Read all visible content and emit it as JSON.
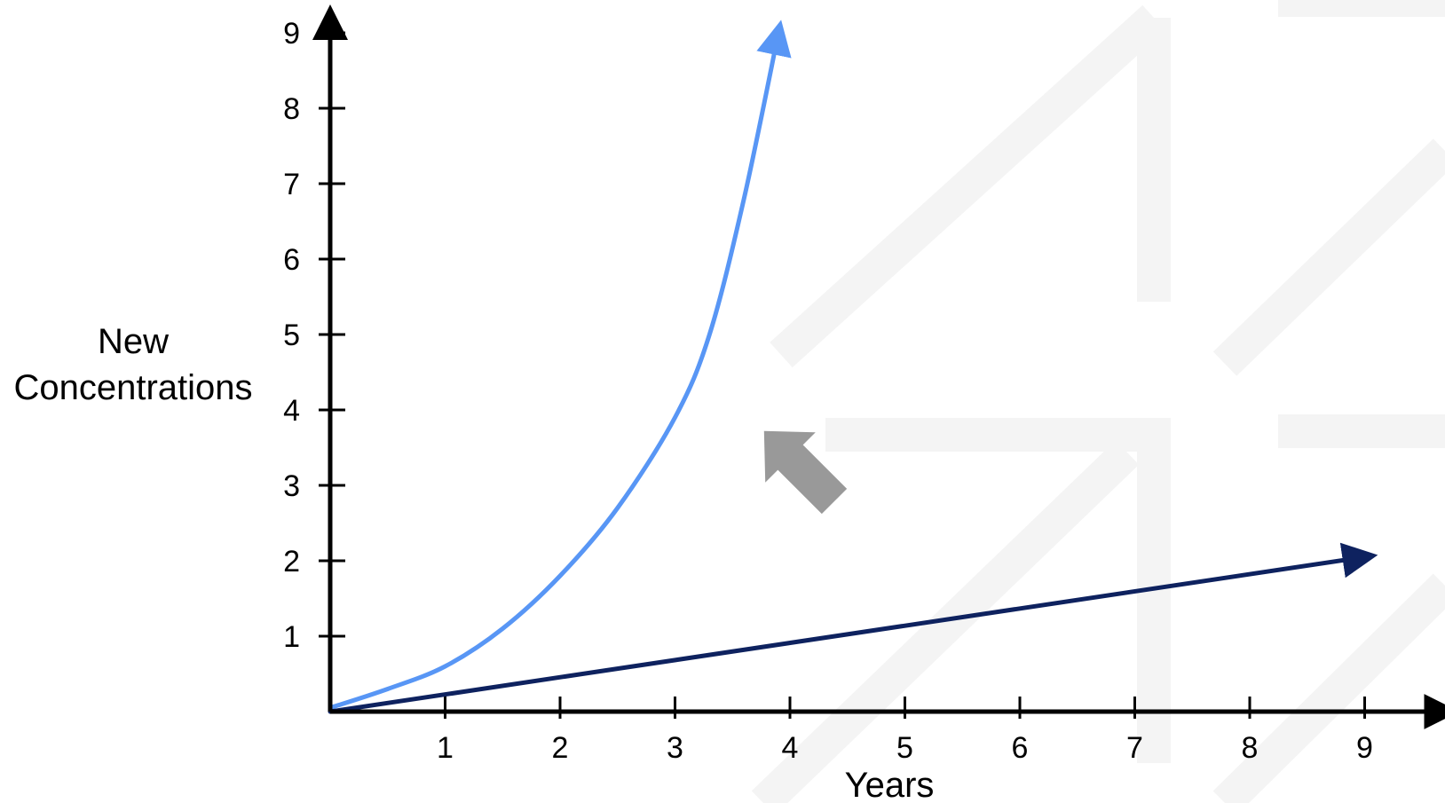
{
  "chart_data": {
    "type": "line",
    "xlabel": "Years",
    "ylabel_lines": [
      "New",
      "Concentrations"
    ],
    "x_ticks": [
      "1",
      "2",
      "3",
      "4",
      "5",
      "6",
      "7",
      "8",
      "9"
    ],
    "y_ticks": [
      "1",
      "2",
      "3",
      "4",
      "5",
      "6",
      "7",
      "8",
      "9"
    ],
    "xlim": [
      0,
      9.4
    ],
    "ylim": [
      0,
      9.4
    ],
    "grid": false,
    "legend": "none",
    "series": [
      {
        "color": "#5896F5",
        "x": [
          0,
          0.5,
          1.0,
          1.5,
          2.0,
          2.5,
          3.0,
          3.3,
          3.6,
          3.9
        ],
        "y": [
          0.05,
          0.3,
          0.6,
          1.1,
          1.8,
          2.7,
          3.9,
          5.0,
          6.8,
          9.0
        ]
      },
      {
        "color": "#0E225F",
        "x": [
          0,
          9.0
        ],
        "y": [
          0,
          2.05
        ]
      }
    ],
    "annotation_arrow_color": "#999999",
    "axis_color": "#000000"
  }
}
